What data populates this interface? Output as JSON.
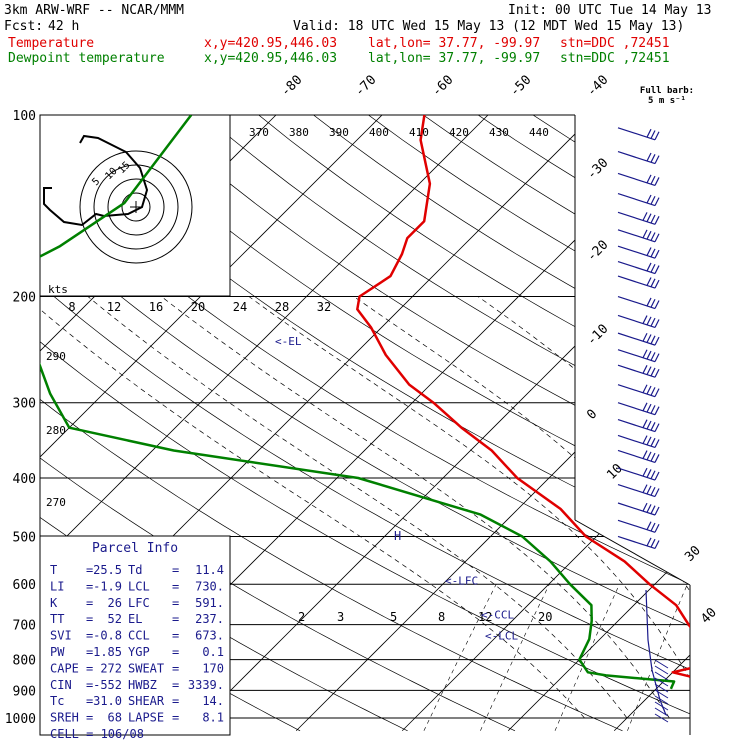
{
  "header": {
    "model": "3km ARW-WRF -- NCAR/MMM",
    "init": "Init: 00 UTC Tue 14 May 13",
    "fcst_label": "Fcst:",
    "fcst_value": "42 h",
    "valid": "Valid: 18 UTC Wed 15 May 13 (12 MDT Wed 15 May 13)",
    "temp_label": "Temperature",
    "dew_label": "Dewpoint temperature",
    "xy": "x,y=420.95,446.03",
    "latlon": "lat,lon= 37.77, -99.97",
    "stn": "stn=DDC ,72451",
    "full_barb": "Full barb:",
    "full_barb_units": "5 m s⁻¹"
  },
  "colors": {
    "temperature": "#e00000",
    "dewpoint": "#008000",
    "wind": "#1a1a8c",
    "dashed": "#000000"
  },
  "chart_data": {
    "type": "line",
    "pressure_labels": [
      "100",
      "200",
      "300",
      "400",
      "500",
      "600",
      "700",
      "800",
      "900",
      "1000"
    ],
    "temp_top_labels": [
      "-80",
      "-70",
      "-60",
      "-50",
      "-40"
    ],
    "temp_right_labels": [
      "-30",
      "-20",
      "-10",
      "0",
      "10",
      "30",
      "40"
    ],
    "theta_labels": [
      "370",
      "380",
      "390",
      "400",
      "410",
      "420",
      "430",
      "440"
    ],
    "theta_left_labels": [
      "290",
      "280",
      "270"
    ],
    "mixing_ratio_labels": [
      "2",
      "3",
      "5",
      "8",
      "12",
      "20"
    ],
    "hodo": {
      "units": "kts",
      "speed_labels": [
        "8",
        "12",
        "16",
        "20",
        "24",
        "28",
        "32"
      ],
      "ring_labels": [
        "15",
        "10",
        "5"
      ]
    },
    "parcel_markers": [
      {
        "label": "EL",
        "p": 237
      },
      {
        "label": "LFC",
        "p": 591
      },
      {
        "label": "CCL",
        "p": 673
      },
      {
        "label": "LCL",
        "p": 730
      }
    ],
    "trop_marker": "H",
    "series": [
      {
        "name": "Temperature",
        "points": [
          {
            "p": 100,
            "t": -66
          },
          {
            "p": 110,
            "t": -64
          },
          {
            "p": 130,
            "t": -59
          },
          {
            "p": 150,
            "t": -56
          },
          {
            "p": 160,
            "t": -56
          },
          {
            "p": 170,
            "t": -55
          },
          {
            "p": 185,
            "t": -54
          },
          {
            "p": 200,
            "t": -55
          },
          {
            "p": 210,
            "t": -54
          },
          {
            "p": 225,
            "t": -51
          },
          {
            "p": 250,
            "t": -47
          },
          {
            "p": 280,
            "t": -42
          },
          {
            "p": 300,
            "t": -38
          },
          {
            "p": 330,
            "t": -33
          },
          {
            "p": 360,
            "t": -28
          },
          {
            "p": 400,
            "t": -23
          },
          {
            "p": 450,
            "t": -16
          },
          {
            "p": 500,
            "t": -11
          },
          {
            "p": 550,
            "t": -5
          },
          {
            "p": 600,
            "t": -0.5
          },
          {
            "p": 650,
            "t": 4
          },
          {
            "p": 700,
            "t": 7
          },
          {
            "p": 750,
            "t": 10
          },
          {
            "p": 790,
            "t": 12.5
          },
          {
            "p": 815,
            "t": 12.5
          },
          {
            "p": 840,
            "t": 10
          },
          {
            "p": 860,
            "t": 13
          },
          {
            "p": 880,
            "t": 18
          },
          {
            "p": 905,
            "t": 25.5
          }
        ]
      },
      {
        "name": "Dewpoint temperature",
        "points": [
          {
            "p": 100,
            "t": -88
          },
          {
            "p": 140,
            "t": -86
          },
          {
            "p": 165,
            "t": -88
          },
          {
            "p": 180,
            "t": -90
          },
          {
            "p": 200,
            "t": -86
          },
          {
            "p": 250,
            "t": -80
          },
          {
            "p": 290,
            "t": -75
          },
          {
            "p": 330,
            "t": -70
          },
          {
            "p": 360,
            "t": -58
          },
          {
            "p": 400,
            "t": -38
          },
          {
            "p": 460,
            "t": -23
          },
          {
            "p": 500,
            "t": -17
          },
          {
            "p": 550,
            "t": -12
          },
          {
            "p": 600,
            "t": -8
          },
          {
            "p": 650,
            "t": -4
          },
          {
            "p": 690,
            "t": -2.5
          },
          {
            "p": 740,
            "t": -1
          },
          {
            "p": 800,
            "t": 0
          },
          {
            "p": 840,
            "t": 2
          },
          {
            "p": 850,
            "t": 4
          },
          {
            "p": 870,
            "t": 11
          },
          {
            "p": 895,
            "t": 11.4
          }
        ]
      }
    ],
    "wind_barbs": [
      {
        "p": 105,
        "spd": 3
      },
      {
        "p": 115,
        "spd": 3
      },
      {
        "p": 125,
        "spd": 3
      },
      {
        "p": 135,
        "spd": 3
      },
      {
        "p": 145,
        "spd": 4
      },
      {
        "p": 155,
        "spd": 4
      },
      {
        "p": 165,
        "spd": 3
      },
      {
        "p": 175,
        "spd": 3
      },
      {
        "p": 185,
        "spd": 3
      },
      {
        "p": 200,
        "spd": 3
      },
      {
        "p": 215,
        "spd": 4
      },
      {
        "p": 230,
        "spd": 4
      },
      {
        "p": 245,
        "spd": 4
      },
      {
        "p": 260,
        "spd": 4
      },
      {
        "p": 280,
        "spd": 4
      },
      {
        "p": 300,
        "spd": 4
      },
      {
        "p": 320,
        "spd": 4
      },
      {
        "p": 340,
        "spd": 4
      },
      {
        "p": 360,
        "spd": 4
      },
      {
        "p": 385,
        "spd": 4
      },
      {
        "p": 410,
        "spd": 4
      },
      {
        "p": 440,
        "spd": 4
      },
      {
        "p": 470,
        "spd": 3
      },
      {
        "p": 500,
        "spd": 3
      }
    ]
  },
  "parcel_info": {
    "title": "Parcel Info",
    "rows": [
      {
        "l1": "T",
        "v1": "25.5",
        "l2": "Td",
        "v2": "11.4"
      },
      {
        "l1": "LI",
        "v1": "-1.9",
        "l2": "LCL",
        "v2": "730."
      },
      {
        "l1": "K",
        "v1": "26",
        "l2": "LFC",
        "v2": "591."
      },
      {
        "l1": "TT",
        "v1": "52",
        "l2": "EL",
        "v2": "237."
      },
      {
        "l1": "SVI",
        "v1": "-0.8",
        "l2": "CCL",
        "v2": "673."
      },
      {
        "l1": "PW",
        "v1": "1.85",
        "l2": "YGP",
        "v2": "0.1"
      },
      {
        "l1": "CAPE",
        "v1": "272",
        "l2": "SWEAT",
        "v2": "170"
      },
      {
        "l1": "CIN",
        "v1": "-552",
        "l2": "HWBZ",
        "v2": "3339."
      },
      {
        "l1": "Tc",
        "v1": "31.0",
        "l2": "SHEAR",
        "v2": "14."
      },
      {
        "l1": "SREH",
        "v1": "68",
        "l2": "LAPSE",
        "v2": "8.1"
      }
    ],
    "cell": "CELL = 106/08"
  }
}
